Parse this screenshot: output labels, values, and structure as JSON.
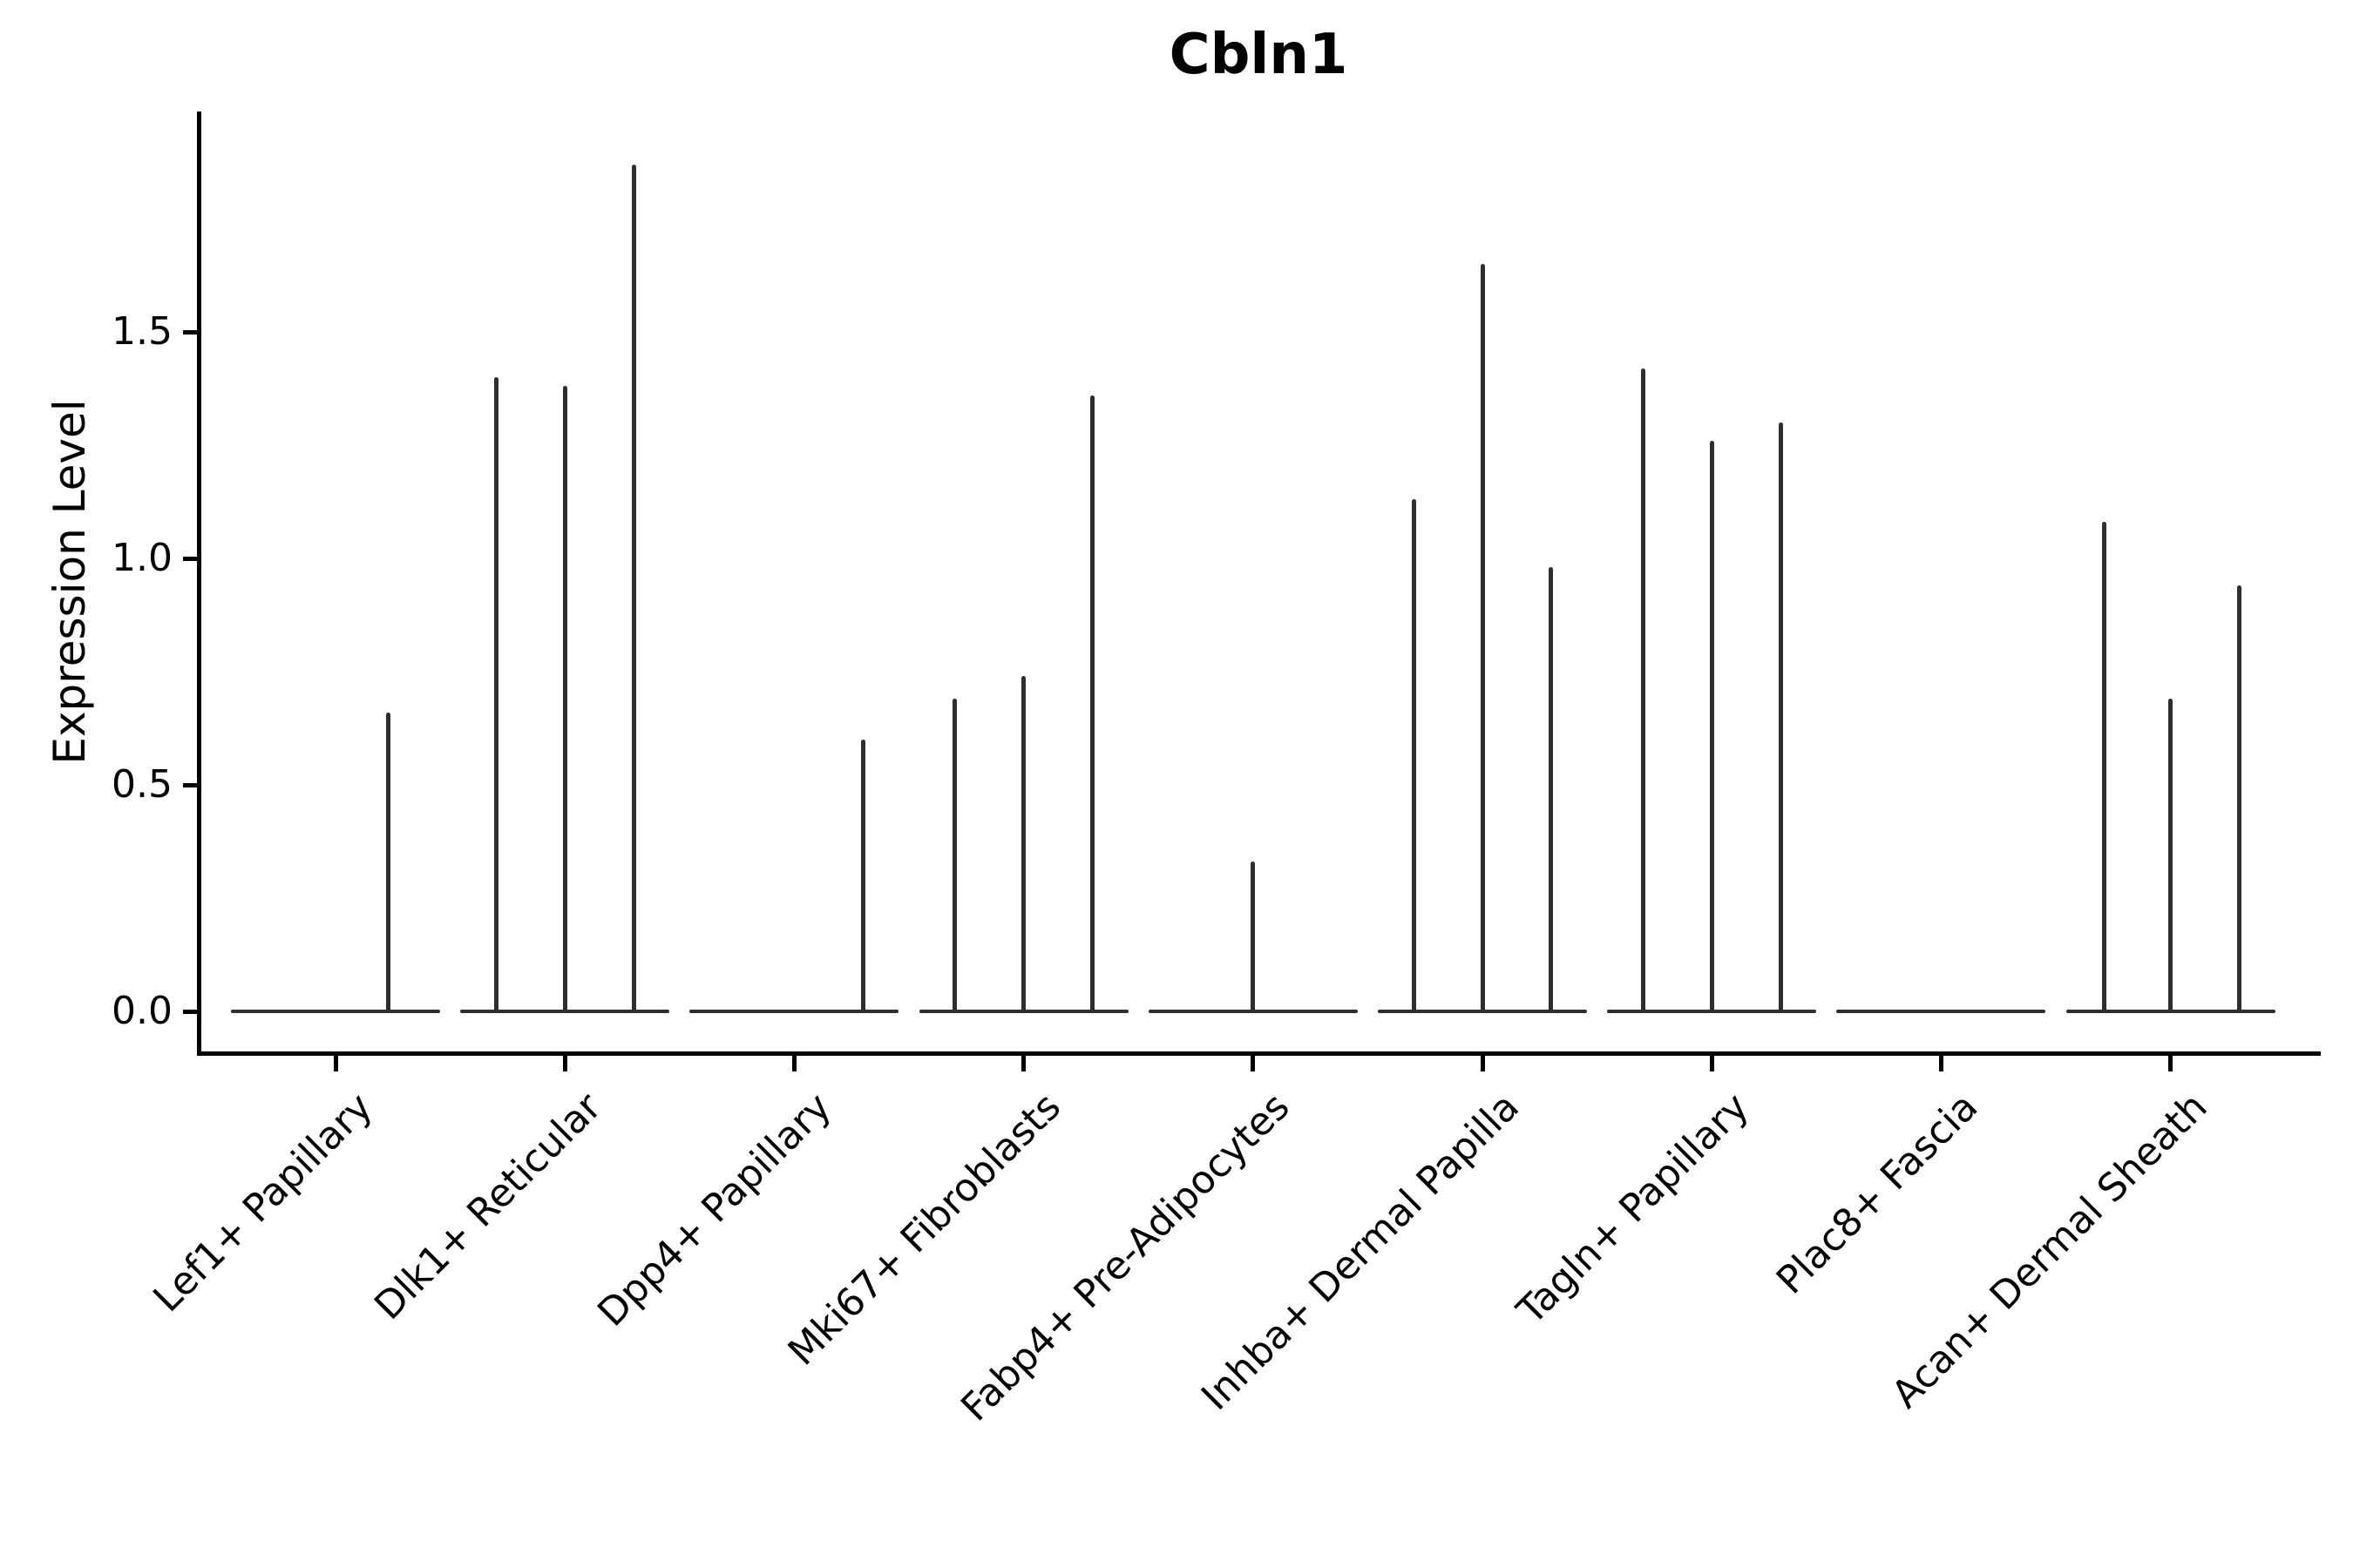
{
  "title": "Cbln1",
  "axes": {
    "ylabel": "Expression Level",
    "yticks": [
      {
        "label": "0.0",
        "value": 0.0
      },
      {
        "label": "0.5",
        "value": 0.5
      },
      {
        "label": "1.0",
        "value": 1.0
      },
      {
        "label": "1.5",
        "value": 1.5
      }
    ]
  },
  "chart_data": {
    "type": "violin",
    "title": "Cbln1",
    "xlabel": "",
    "ylabel": "Expression Level",
    "ylim": [
      -0.09,
      1.99
    ],
    "grid": false,
    "legend": "none",
    "line_color": "#2e2e2e",
    "axis_color": "#000000",
    "baseline_halfwidth_units": 0.456,
    "note": "Collapsed violins: flat density line at 0 per cluster with thin spikes where cells express; up to 3 sub-violins per cluster, offsets in category units",
    "categories": [
      "Lef1+ Papillary",
      "Dlk1+ Reticular",
      "Dpp4+ Papillary",
      "Mki67+ Fibroblasts",
      "Fabp4+ Pre-Adipocytes",
      "Inhba+ Dermal Papilla",
      "Tagln+ Papillary",
      "Plac8+ Fascia",
      "Acan+ Dermal Sheath"
    ],
    "groups": [
      {
        "label": "Lef1+ Papillary",
        "spikes": [
          {
            "offset": 0.23,
            "max_expression": 0.66
          }
        ]
      },
      {
        "label": "Dlk1+ Reticular",
        "spikes": [
          {
            "offset": -0.3,
            "max_expression": 1.4
          },
          {
            "offset": 0.0,
            "max_expression": 1.38
          },
          {
            "offset": 0.3,
            "max_expression": 1.87
          }
        ]
      },
      {
        "label": "Dpp4+ Papillary",
        "spikes": [
          {
            "offset": 0.3,
            "max_expression": 0.6
          }
        ]
      },
      {
        "label": "Mki67+ Fibroblasts",
        "spikes": [
          {
            "offset": -0.3,
            "max_expression": 0.69
          },
          {
            "offset": 0.0,
            "max_expression": 0.74
          },
          {
            "offset": 0.3,
            "max_expression": 1.36
          }
        ]
      },
      {
        "label": "Fabp4+ Pre-Adipocytes",
        "spikes": [
          {
            "offset": 0.0,
            "max_expression": 0.33
          }
        ]
      },
      {
        "label": "Inhba+ Dermal Papilla",
        "spikes": [
          {
            "offset": -0.3,
            "max_expression": 1.13
          },
          {
            "offset": 0.0,
            "max_expression": 1.65
          },
          {
            "offset": 0.3,
            "max_expression": 0.98
          }
        ]
      },
      {
        "label": "Tagln+ Papillary",
        "spikes": [
          {
            "offset": -0.3,
            "max_expression": 1.42
          },
          {
            "offset": 0.0,
            "max_expression": 1.26
          },
          {
            "offset": 0.3,
            "max_expression": 1.3
          }
        ]
      },
      {
        "label": "Plac8+ Fascia",
        "spikes": []
      },
      {
        "label": "Acan+ Dermal Sheath",
        "spikes": [
          {
            "offset": -0.29,
            "max_expression": 1.08
          },
          {
            "offset": 0.0,
            "max_expression": 0.69
          },
          {
            "offset": 0.3,
            "max_expression": 0.94
          }
        ]
      }
    ]
  }
}
